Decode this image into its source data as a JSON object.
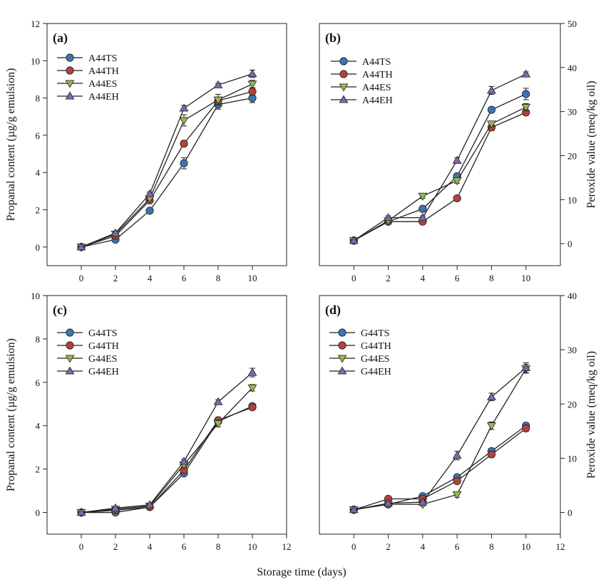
{
  "figure": {
    "xlabel": "Storage time (days)"
  },
  "chart_data": [
    {
      "panel_label": "(a)",
      "type": "line",
      "xlim": [
        -2,
        12
      ],
      "xticks": [
        0,
        2,
        4,
        6,
        8,
        10
      ],
      "xticklabels": [
        "0",
        "2",
        "4",
        "6",
        "8",
        "10"
      ],
      "ylim": [
        -1,
        12
      ],
      "yticks": [
        0,
        2,
        4,
        6,
        8,
        10,
        12
      ],
      "yticklabels": [
        "0",
        "2",
        "4",
        "6",
        "8",
        "10",
        "12"
      ],
      "ylabel": "Propanal content (µg/g emulsion)",
      "ylabel_side": "left",
      "x": [
        0,
        2,
        4,
        6,
        8,
        10
      ],
      "series": [
        {
          "name": "A44TS",
          "marker": "circle",
          "color": "#3d73b0",
          "values": [
            0.0,
            0.4,
            1.95,
            4.5,
            7.65,
            8.0
          ],
          "err": [
            0.05,
            0.1,
            0.1,
            0.3,
            0.25,
            0.25
          ]
        },
        {
          "name": "A44TH",
          "marker": "circle",
          "color": "#b5413a",
          "values": [
            0.0,
            0.6,
            2.5,
            5.55,
            7.85,
            8.35
          ],
          "err": [
            0.05,
            0.1,
            0.1,
            0.15,
            0.15,
            0.2
          ]
        },
        {
          "name": "A44ES",
          "marker": "triangle-down",
          "color": "#94b84a",
          "values": [
            0.0,
            0.7,
            2.6,
            6.8,
            7.9,
            8.75
          ],
          "err": [
            0.05,
            0.1,
            0.1,
            0.3,
            0.3,
            0.2
          ]
        },
        {
          "name": "A44EH",
          "marker": "triangle-up",
          "color": "#8067a9",
          "values": [
            0.0,
            0.75,
            2.85,
            7.45,
            8.7,
            9.3
          ],
          "err": [
            0.05,
            0.1,
            0.1,
            0.15,
            0.1,
            0.2
          ]
        }
      ]
    },
    {
      "panel_label": "(b)",
      "type": "line",
      "xlim": [
        -2,
        12
      ],
      "xticks": [
        0,
        2,
        4,
        6,
        8,
        10
      ],
      "xticklabels": [
        "0",
        "2",
        "4",
        "6",
        "8",
        "10"
      ],
      "ylim": [
        -5,
        50
      ],
      "yticks": [
        0,
        10,
        20,
        30,
        40,
        50
      ],
      "yticklabels": [
        "0",
        "10",
        "20",
        "30",
        "40",
        "50"
      ],
      "ylabel": "Peroxide value (meq/kg oil)",
      "ylabel_side": "right",
      "x": [
        0,
        2,
        4,
        6,
        8,
        10
      ],
      "series": [
        {
          "name": "A44TS",
          "marker": "circle",
          "color": "#3d73b0",
          "values": [
            0.7,
            5.0,
            7.9,
            15.3,
            30.4,
            34.0
          ],
          "err": [
            0.2,
            0.4,
            0.4,
            0.6,
            0.6,
            1.3
          ]
        },
        {
          "name": "A44TH",
          "marker": "circle",
          "color": "#b5413a",
          "values": [
            0.7,
            5.0,
            5.0,
            10.3,
            26.4,
            29.8
          ],
          "err": [
            0.2,
            0.4,
            0.4,
            0.5,
            0.7,
            0.5
          ]
        },
        {
          "name": "A44ES",
          "marker": "triangle-down",
          "color": "#94b84a",
          "values": [
            0.7,
            5.2,
            10.8,
            14.3,
            27.2,
            31.0
          ],
          "err": [
            0.2,
            0.4,
            0.5,
            0.6,
            0.6,
            0.8
          ]
        },
        {
          "name": "A44EH",
          "marker": "triangle-up",
          "color": "#8067a9",
          "values": [
            0.7,
            5.9,
            5.9,
            18.9,
            34.8,
            38.5
          ],
          "err": [
            0.2,
            0.4,
            0.4,
            0.6,
            0.9,
            0.5
          ]
        }
      ]
    },
    {
      "panel_label": "(c)",
      "type": "line",
      "xlim": [
        -2,
        12
      ],
      "xticks": [
        0,
        2,
        4,
        6,
        8,
        10,
        12
      ],
      "xticklabels": [
        "0",
        "2",
        "4",
        "6",
        "8",
        "10",
        "12"
      ],
      "ylim": [
        -1,
        10
      ],
      "yticks": [
        0,
        2,
        4,
        6,
        8,
        10
      ],
      "yticklabels": [
        "0",
        "2",
        "4",
        "6",
        "8",
        "10"
      ],
      "ylabel": "Propanal content (µg/g emulsion)",
      "ylabel_side": "left",
      "x": [
        0,
        2,
        4,
        6,
        8,
        10
      ],
      "series": [
        {
          "name": "G44TS",
          "marker": "circle",
          "color": "#3d73b0",
          "values": [
            0.0,
            0.0,
            0.25,
            1.8,
            4.2,
            4.9
          ],
          "err": [
            0.03,
            0.05,
            0.05,
            0.1,
            0.1,
            0.1
          ]
        },
        {
          "name": "G44TH",
          "marker": "circle",
          "color": "#b5413a",
          "values": [
            0.0,
            0.1,
            0.25,
            1.95,
            4.25,
            4.85
          ],
          "err": [
            0.03,
            0.05,
            0.05,
            0.1,
            0.1,
            0.1
          ]
        },
        {
          "name": "G44ES",
          "marker": "triangle-down",
          "color": "#94b84a",
          "values": [
            0.0,
            0.15,
            0.3,
            2.2,
            4.1,
            5.75
          ],
          "err": [
            0.03,
            0.05,
            0.05,
            0.1,
            0.15,
            0.15
          ]
        },
        {
          "name": "G44EH",
          "marker": "triangle-up",
          "color": "#8067a9",
          "values": [
            0.0,
            0.2,
            0.35,
            2.35,
            5.1,
            6.45
          ],
          "err": [
            0.03,
            0.05,
            0.05,
            0.1,
            0.1,
            0.2
          ]
        }
      ]
    },
    {
      "panel_label": "(d)",
      "type": "line",
      "xlim": [
        -2,
        12
      ],
      "xticks": [
        0,
        2,
        4,
        6,
        8,
        10,
        12
      ],
      "xticklabels": [
        "0",
        "2",
        "4",
        "6",
        "8",
        "10",
        "12"
      ],
      "ylim": [
        -4,
        40
      ],
      "yticks": [
        0,
        10,
        20,
        30,
        40
      ],
      "yticklabels": [
        "0",
        "10",
        "20",
        "30",
        "40"
      ],
      "ylabel": "Peroxide value (meq/kg oil)",
      "ylabel_side": "right",
      "x": [
        0,
        2,
        4,
        6,
        8,
        10
      ],
      "series": [
        {
          "name": "G44TS",
          "marker": "circle",
          "color": "#3d73b0",
          "values": [
            0.5,
            1.5,
            3.0,
            6.5,
            11.3,
            16.0
          ],
          "err": [
            0.2,
            0.3,
            0.3,
            0.4,
            0.5,
            0.5
          ]
        },
        {
          "name": "G44TH",
          "marker": "circle",
          "color": "#b5413a",
          "values": [
            0.5,
            2.5,
            2.5,
            5.8,
            10.7,
            15.5
          ],
          "err": [
            0.2,
            0.3,
            0.3,
            0.4,
            0.5,
            0.5
          ]
        },
        {
          "name": "G44ES",
          "marker": "triangle-down",
          "color": "#94b84a",
          "values": [
            0.5,
            1.5,
            1.5,
            3.3,
            16.0,
            26.5
          ],
          "err": [
            0.2,
            0.3,
            0.3,
            0.5,
            0.7,
            0.8
          ]
        },
        {
          "name": "G44EH",
          "marker": "triangle-up",
          "color": "#8067a9",
          "values": [
            0.5,
            1.7,
            1.9,
            10.5,
            21.3,
            26.7
          ],
          "err": [
            0.2,
            0.3,
            0.3,
            0.8,
            0.7,
            0.9
          ]
        }
      ]
    }
  ]
}
